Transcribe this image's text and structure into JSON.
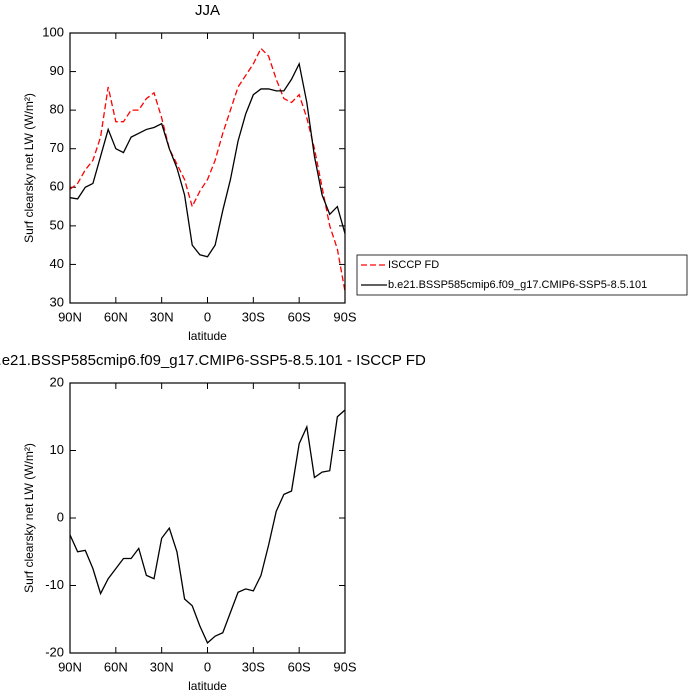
{
  "chart_data": [
    {
      "type": "line",
      "title": "JJA",
      "xlabel": "latitude",
      "ylabel": "Surf clearsky net LW (W/m²)",
      "x": [
        90,
        85,
        80,
        75,
        70,
        65,
        60,
        55,
        50,
        45,
        40,
        35,
        30,
        25,
        20,
        15,
        10,
        5,
        0,
        -5,
        -10,
        -15,
        -20,
        -25,
        -30,
        -35,
        -40,
        -45,
        -50,
        -55,
        -60,
        -65,
        -70,
        -75,
        -80,
        -85,
        -90
      ],
      "xlim": [
        90,
        -90
      ],
      "xticks": [
        {
          "value": 90,
          "label": "90N"
        },
        {
          "value": 60,
          "label": "60N"
        },
        {
          "value": 30,
          "label": "30N"
        },
        0,
        {
          "value": -30,
          "label": "30S"
        },
        {
          "value": -60,
          "label": "60S"
        },
        {
          "value": -90,
          "label": "90S"
        }
      ],
      "ylim": [
        30,
        100
      ],
      "yticks": [
        30,
        40,
        50,
        60,
        70,
        80,
        90,
        100
      ],
      "legend": "outside-right",
      "series": [
        {
          "name": "ISCCP FD",
          "color": "#ff0000",
          "line_style": "dashed",
          "values": [
            59.5,
            61,
            64.5,
            67,
            73,
            86,
            77,
            77,
            80,
            80,
            83,
            84.5,
            78,
            70,
            66,
            62,
            55,
            59,
            62,
            67,
            74,
            80,
            86,
            89,
            92,
            96,
            94,
            88,
            83,
            82,
            84,
            78,
            70,
            60,
            50,
            44,
            33
          ]
        },
        {
          "name": "b.e21.BSSP585cmip6.f09_g17.CMIP6-SSP5-8.5.101",
          "color": "#000000",
          "line_style": "solid",
          "values": [
            57.3,
            57,
            60,
            61,
            68,
            75,
            70,
            69,
            73,
            74,
            75,
            75.5,
            76.5,
            70,
            65,
            58,
            45,
            42.5,
            42,
            45,
            54,
            62,
            72,
            79,
            84,
            85.5,
            85.5,
            85,
            85,
            88,
            92,
            82,
            68,
            58,
            53,
            55,
            48
          ]
        }
      ]
    },
    {
      "type": "line",
      "title": "b.e21.BSSP585cmip6.f09_g17.CMIP6-SSP5-8.5.101 - ISCCP FD",
      "xlabel": "latitude",
      "ylabel": "Surf clearsky net LW (W/m²)",
      "x": [
        90,
        85,
        80,
        75,
        70,
        65,
        60,
        55,
        50,
        45,
        40,
        35,
        30,
        25,
        20,
        15,
        10,
        5,
        0,
        -5,
        -10,
        -15,
        -20,
        -25,
        -30,
        -35,
        -40,
        -45,
        -50,
        -55,
        -60,
        -65,
        -70,
        -75,
        -80,
        -85,
        -90
      ],
      "xlim": [
        90,
        -90
      ],
      "xticks": [
        {
          "value": 90,
          "label": "90N"
        },
        {
          "value": 60,
          "label": "60N"
        },
        {
          "value": 30,
          "label": "30N"
        },
        0,
        {
          "value": -30,
          "label": "30S"
        },
        {
          "value": -60,
          "label": "60S"
        },
        {
          "value": -90,
          "label": "90S"
        }
      ],
      "ylim": [
        -20,
        20
      ],
      "yticks": [
        -20,
        -10,
        0,
        10,
        20
      ],
      "series": [
        {
          "color": "#000000",
          "line_style": "solid",
          "values": [
            -2.5,
            -5,
            -4.8,
            -7.5,
            -11.2,
            -9,
            -7.5,
            -6,
            -6,
            -4.5,
            -8.5,
            -9,
            -3,
            -1.5,
            -5,
            -12,
            -13,
            -16,
            -18.5,
            -17.5,
            -17,
            -14,
            -11,
            -10.5,
            -10.8,
            -8.5,
            -4,
            1,
            3.5,
            4,
            11,
            13.5,
            6,
            6.8,
            7,
            15,
            16
          ]
        }
      ]
    }
  ]
}
